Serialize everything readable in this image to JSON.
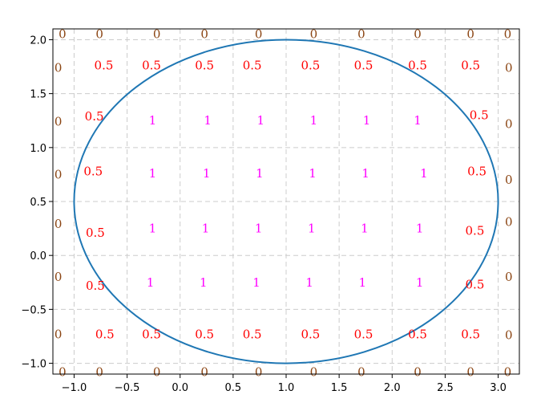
{
  "chart_data": {
    "type": "scatter",
    "title": "",
    "xlabel": "",
    "ylabel": "",
    "xlim": [
      -1.2,
      3.2
    ],
    "ylim": [
      -1.1,
      2.1
    ],
    "xticks": [
      -1.0,
      -0.5,
      0.0,
      0.5,
      1.0,
      1.5,
      2.0,
      2.5,
      3.0
    ],
    "xtick_labels": [
      "−1.0",
      "−0.5",
      "0.0",
      "0.5",
      "1.0",
      "1.5",
      "2.0",
      "2.5",
      "3.0"
    ],
    "yticks": [
      -1.0,
      -0.5,
      0.0,
      0.5,
      1.0,
      1.5,
      2.0
    ],
    "ytick_labels": [
      "−1.0",
      "−0.5",
      "0.0",
      "0.5",
      "1.0",
      "1.5",
      "2.0"
    ],
    "grid": true,
    "grid_style": "dashed",
    "ellipse": {
      "center": [
        1.0,
        0.5
      ],
      "rx": 2.0,
      "ry": 1.5,
      "color": "#1f77b4"
    },
    "label_colors": {
      "0": "#8b4513",
      "0.5": "#ff0000",
      "1": "#ff00ff"
    },
    "labels": [
      {
        "x": -1.11,
        "y": 2.05,
        "text": "0"
      },
      {
        "x": -0.76,
        "y": 2.05,
        "text": "0"
      },
      {
        "x": -0.22,
        "y": 2.05,
        "text": "0"
      },
      {
        "x": 0.23,
        "y": 2.05,
        "text": "0"
      },
      {
        "x": 0.74,
        "y": 2.05,
        "text": "0"
      },
      {
        "x": 1.26,
        "y": 2.05,
        "text": "0"
      },
      {
        "x": 1.71,
        "y": 2.05,
        "text": "0"
      },
      {
        "x": 2.24,
        "y": 2.05,
        "text": "0"
      },
      {
        "x": 2.74,
        "y": 2.05,
        "text": "0"
      },
      {
        "x": 3.09,
        "y": 2.05,
        "text": "0"
      },
      {
        "x": -1.15,
        "y": 1.74,
        "text": "0"
      },
      {
        "x": -0.72,
        "y": 1.76,
        "text": "0.5"
      },
      {
        "x": -0.27,
        "y": 1.76,
        "text": "0.5"
      },
      {
        "x": 0.23,
        "y": 1.76,
        "text": "0.5"
      },
      {
        "x": 0.68,
        "y": 1.76,
        "text": "0.5"
      },
      {
        "x": 1.23,
        "y": 1.76,
        "text": "0.5"
      },
      {
        "x": 1.73,
        "y": 1.76,
        "text": "0.5"
      },
      {
        "x": 2.24,
        "y": 1.76,
        "text": "0.5"
      },
      {
        "x": 2.74,
        "y": 1.76,
        "text": "0.5"
      },
      {
        "x": 3.1,
        "y": 1.74,
        "text": "0"
      },
      {
        "x": -1.15,
        "y": 1.24,
        "text": "0"
      },
      {
        "x": -0.81,
        "y": 1.29,
        "text": "0.5"
      },
      {
        "x": -0.26,
        "y": 1.25,
        "text": "1"
      },
      {
        "x": 0.26,
        "y": 1.25,
        "text": "1"
      },
      {
        "x": 0.76,
        "y": 1.25,
        "text": "1"
      },
      {
        "x": 1.26,
        "y": 1.25,
        "text": "1"
      },
      {
        "x": 1.76,
        "y": 1.25,
        "text": "1"
      },
      {
        "x": 2.24,
        "y": 1.25,
        "text": "1"
      },
      {
        "x": 2.82,
        "y": 1.3,
        "text": "0.5"
      },
      {
        "x": 3.1,
        "y": 1.22,
        "text": "0"
      },
      {
        "x": -1.15,
        "y": 0.75,
        "text": "0"
      },
      {
        "x": -0.82,
        "y": 0.78,
        "text": "0.5"
      },
      {
        "x": -0.26,
        "y": 0.76,
        "text": "1"
      },
      {
        "x": 0.25,
        "y": 0.76,
        "text": "1"
      },
      {
        "x": 0.75,
        "y": 0.76,
        "text": "1"
      },
      {
        "x": 1.25,
        "y": 0.76,
        "text": "1"
      },
      {
        "x": 1.75,
        "y": 0.76,
        "text": "1"
      },
      {
        "x": 2.3,
        "y": 0.76,
        "text": "1"
      },
      {
        "x": 2.8,
        "y": 0.78,
        "text": "0.5"
      },
      {
        "x": 3.1,
        "y": 0.7,
        "text": "0"
      },
      {
        "x": -1.15,
        "y": 0.29,
        "text": "0"
      },
      {
        "x": -0.8,
        "y": 0.21,
        "text": "0.5"
      },
      {
        "x": -0.26,
        "y": 0.25,
        "text": "1"
      },
      {
        "x": 0.24,
        "y": 0.25,
        "text": "1"
      },
      {
        "x": 0.74,
        "y": 0.25,
        "text": "1"
      },
      {
        "x": 1.24,
        "y": 0.25,
        "text": "1"
      },
      {
        "x": 1.74,
        "y": 0.25,
        "text": "1"
      },
      {
        "x": 2.26,
        "y": 0.25,
        "text": "1"
      },
      {
        "x": 2.78,
        "y": 0.23,
        "text": "0.5"
      },
      {
        "x": 3.1,
        "y": 0.31,
        "text": "0"
      },
      {
        "x": -1.15,
        "y": -0.2,
        "text": "0"
      },
      {
        "x": -0.8,
        "y": -0.28,
        "text": "0.5"
      },
      {
        "x": -0.28,
        "y": -0.25,
        "text": "1"
      },
      {
        "x": 0.22,
        "y": -0.25,
        "text": "1"
      },
      {
        "x": 0.72,
        "y": -0.25,
        "text": "1"
      },
      {
        "x": 1.22,
        "y": -0.25,
        "text": "1"
      },
      {
        "x": 1.72,
        "y": -0.25,
        "text": "1"
      },
      {
        "x": 2.26,
        "y": -0.25,
        "text": "1"
      },
      {
        "x": 2.78,
        "y": -0.27,
        "text": "0.5"
      },
      {
        "x": 3.1,
        "y": -0.2,
        "text": "0"
      },
      {
        "x": -1.15,
        "y": -0.73,
        "text": "0"
      },
      {
        "x": -0.71,
        "y": -0.73,
        "text": "0.5"
      },
      {
        "x": -0.27,
        "y": -0.73,
        "text": "0.5"
      },
      {
        "x": 0.23,
        "y": -0.73,
        "text": "0.5"
      },
      {
        "x": 0.68,
        "y": -0.73,
        "text": "0.5"
      },
      {
        "x": 1.23,
        "y": -0.73,
        "text": "0.5"
      },
      {
        "x": 1.73,
        "y": -0.73,
        "text": "0.5"
      },
      {
        "x": 2.24,
        "y": -0.73,
        "text": "0.5"
      },
      {
        "x": 2.74,
        "y": -0.73,
        "text": "0.5"
      },
      {
        "x": 3.1,
        "y": -0.74,
        "text": "0"
      },
      {
        "x": -1.11,
        "y": -1.08,
        "text": "0"
      },
      {
        "x": -0.76,
        "y": -1.08,
        "text": "0"
      },
      {
        "x": -0.22,
        "y": -1.08,
        "text": "0"
      },
      {
        "x": 0.23,
        "y": -1.08,
        "text": "0"
      },
      {
        "x": 0.74,
        "y": -1.08,
        "text": "0"
      },
      {
        "x": 1.26,
        "y": -1.08,
        "text": "0"
      },
      {
        "x": 1.71,
        "y": -1.08,
        "text": "0"
      },
      {
        "x": 2.24,
        "y": -1.08,
        "text": "0"
      },
      {
        "x": 2.74,
        "y": -1.08,
        "text": "0"
      },
      {
        "x": 3.09,
        "y": -1.08,
        "text": "0"
      }
    ]
  }
}
